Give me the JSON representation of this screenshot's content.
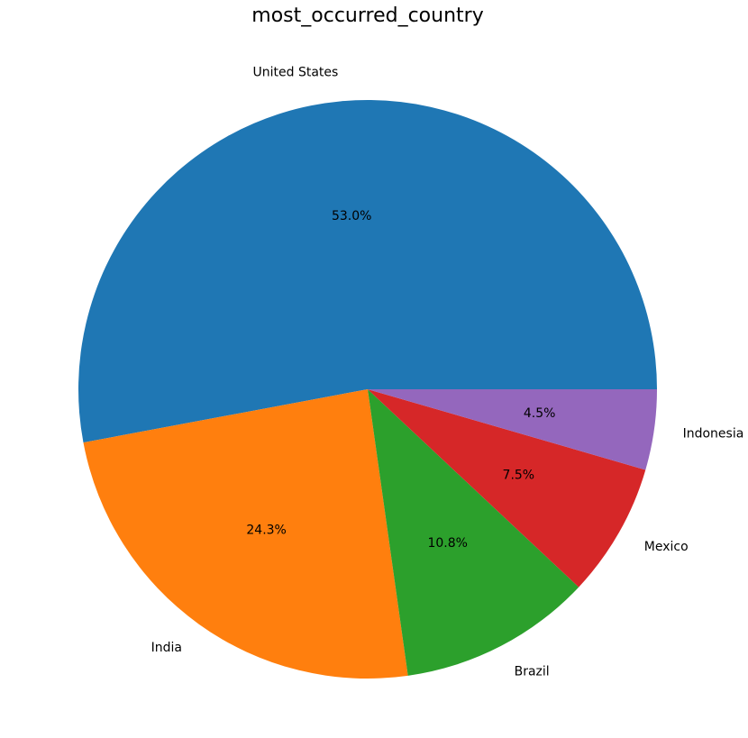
{
  "chart_data": {
    "type": "pie",
    "title": "most_occurred_country",
    "categories": [
      "United States",
      "India",
      "Brazil",
      "Mexico",
      "Indonesia"
    ],
    "values": [
      53.0,
      24.3,
      10.8,
      7.5,
      4.5
    ],
    "percent_labels": [
      "53.0%",
      "24.3%",
      "10.8%",
      "7.5%",
      "4.5%"
    ],
    "colors": [
      "#1f77b4",
      "#ff7f0e",
      "#2ca02c",
      "#d62728",
      "#9467bd"
    ],
    "start_angle_deg": 0,
    "direction": "counterclockwise",
    "legend": "none"
  }
}
